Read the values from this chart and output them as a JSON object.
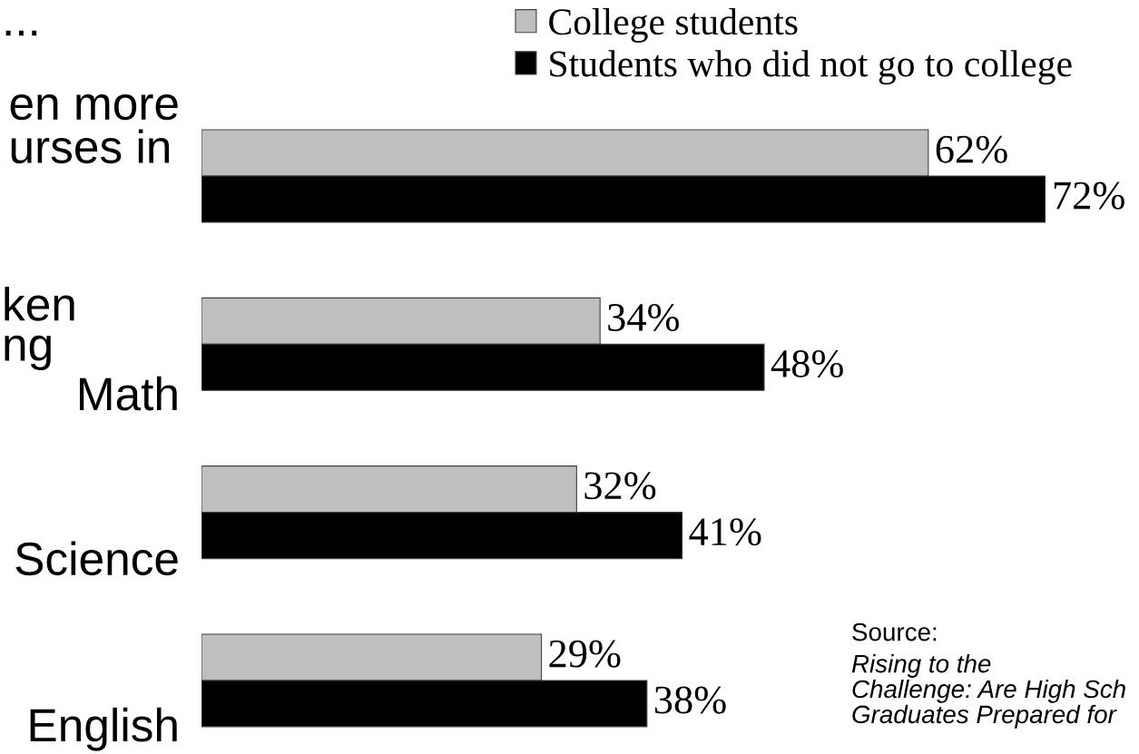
{
  "chart_data": {
    "type": "bar",
    "orientation": "horizontal",
    "title": "...",
    "categories": [
      "en more\nurses in",
      "Math",
      "Science",
      "English"
    ],
    "series": [
      {
        "name": "College students",
        "color": "#bfbfbf",
        "values": [
          62,
          34,
          32,
          29
        ],
        "value_labels": [
          "62%",
          "34%",
          "32%",
          "29%"
        ]
      },
      {
        "name": "Students who did not go to college",
        "color": "#000000",
        "values": [
          72,
          48,
          41,
          38
        ],
        "value_labels": [
          "72%",
          "48%",
          "41%",
          "38%"
        ]
      }
    ],
    "legend": "top",
    "tick_labels": "y",
    "annotations": [
      "ken\nng",
      "Source:",
      "Rising to the\nChallenge: Are High Sch\nGraduates Prepared for"
    ]
  }
}
